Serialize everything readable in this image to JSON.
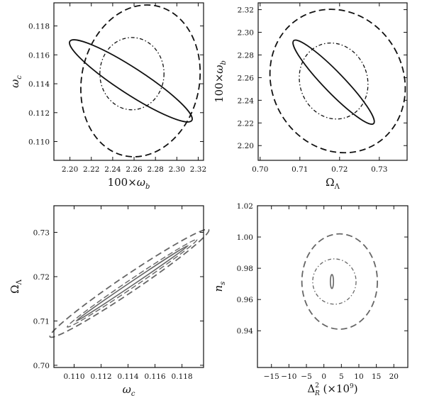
{
  "chart_data": [
    {
      "type": "scatter",
      "panel": "top-left",
      "xlabel": "100×ω_b",
      "ylabel": "ω_c",
      "xlim": [
        2.185,
        2.325
      ],
      "ylim": [
        0.1087,
        0.1196
      ],
      "xticks": [
        "2.20",
        "2.22",
        "2.24",
        "2.26",
        "2.28",
        "2.30",
        "2.32"
      ],
      "yticks": [
        "0.110",
        "0.112",
        "0.114",
        "0.116",
        "0.118"
      ],
      "contours": [
        {
          "style": "dashed",
          "cx": 2.266,
          "cy": 0.1142,
          "rx": 0.055,
          "ry": 0.0053,
          "tilt_deg": -12
        },
        {
          "style": "solid",
          "cx": 2.257,
          "cy": 0.1142,
          "rx": 0.068,
          "ry": 0.0009,
          "tilt_deg": -33
        },
        {
          "style": "dotted",
          "cx": 2.258,
          "cy": 0.1147,
          "rx": 0.03,
          "ry": 0.0025,
          "tilt_deg": 0
        }
      ]
    },
    {
      "type": "scatter",
      "panel": "top-right",
      "xlabel": "Ω_Λ",
      "ylabel": "100×ω_b",
      "xlim": [
        0.6995,
        0.737
      ],
      "ylim": [
        2.187,
        2.326
      ],
      "xticks": [
        "0.70",
        "0.71",
        "0.72",
        "0.73"
      ],
      "yticks": [
        "2.20",
        "2.22",
        "2.24",
        "2.26",
        "2.28",
        "2.30",
        "2.32"
      ],
      "contours": [
        {
          "style": "dashed",
          "cx": 0.7195,
          "cy": 2.257,
          "rx": 0.0165,
          "ry": 0.065,
          "tilt_deg": 30
        },
        {
          "style": "solid",
          "cx": 0.7185,
          "cy": 2.256,
          "rx": 0.0145,
          "ry": 0.009,
          "tilt_deg": -46
        },
        {
          "style": "dotted",
          "cx": 0.7185,
          "cy": 2.257,
          "rx": 0.0085,
          "ry": 0.034,
          "tilt_deg": 20
        }
      ]
    },
    {
      "type": "scatter",
      "panel": "bottom-left",
      "xlabel": "ω_c",
      "ylabel": "Ω_Λ",
      "xlim": [
        0.1085,
        0.1196
      ],
      "ylim": [
        0.6995,
        0.736
      ],
      "xticks": [
        "0.110",
        "0.112",
        "0.114",
        "0.116",
        "0.118"
      ],
      "yticks": [
        "0.70",
        "0.71",
        "0.72",
        "0.73"
      ],
      "contours": [
        {
          "style": "dashed",
          "cx": 0.1141,
          "cy": 0.7185,
          "rx": 0.0071,
          "ry": 0.0019,
          "tilt_deg": 34
        },
        {
          "style": "solid",
          "cx": 0.1143,
          "cy": 0.7185,
          "rx": 0.005,
          "ry": 0.0004,
          "tilt_deg": 34
        },
        {
          "style": "dashed-inner",
          "cx": 0.1143,
          "cy": 0.7185,
          "rx": 0.0058,
          "ry": 0.0009,
          "tilt_deg": 34
        }
      ]
    },
    {
      "type": "scatter",
      "panel": "bottom-right",
      "xlabel": "Δ_R^2 (×10^9)",
      "ylabel": "n_s",
      "xlim": [
        -19,
        24
      ],
      "ylim": [
        0.9165,
        1.02
      ],
      "xticks": [
        "−15",
        "−10",
        "−5",
        "0",
        "5",
        "10",
        "15",
        "20"
      ],
      "yticks": [
        "0.94",
        "0.96",
        "0.98",
        "1.00",
        "1.02"
      ],
      "contours": [
        {
          "style": "dashed",
          "cx": 4.5,
          "cy": 0.9715,
          "rx": 10.8,
          "ry": 0.0305,
          "tilt_deg": 0
        },
        {
          "style": "dotted",
          "cx": 3.0,
          "cy": 0.9715,
          "rx": 6.2,
          "ry": 0.0145,
          "tilt_deg": 0
        },
        {
          "style": "solid",
          "cx": 2.3,
          "cy": 0.9715,
          "rx": 0.45,
          "ry": 0.0045,
          "tilt_deg": 0
        }
      ]
    }
  ],
  "colors": {
    "axes": "#111111",
    "top_contours": "#111111",
    "bottom_contours": "#666666"
  }
}
